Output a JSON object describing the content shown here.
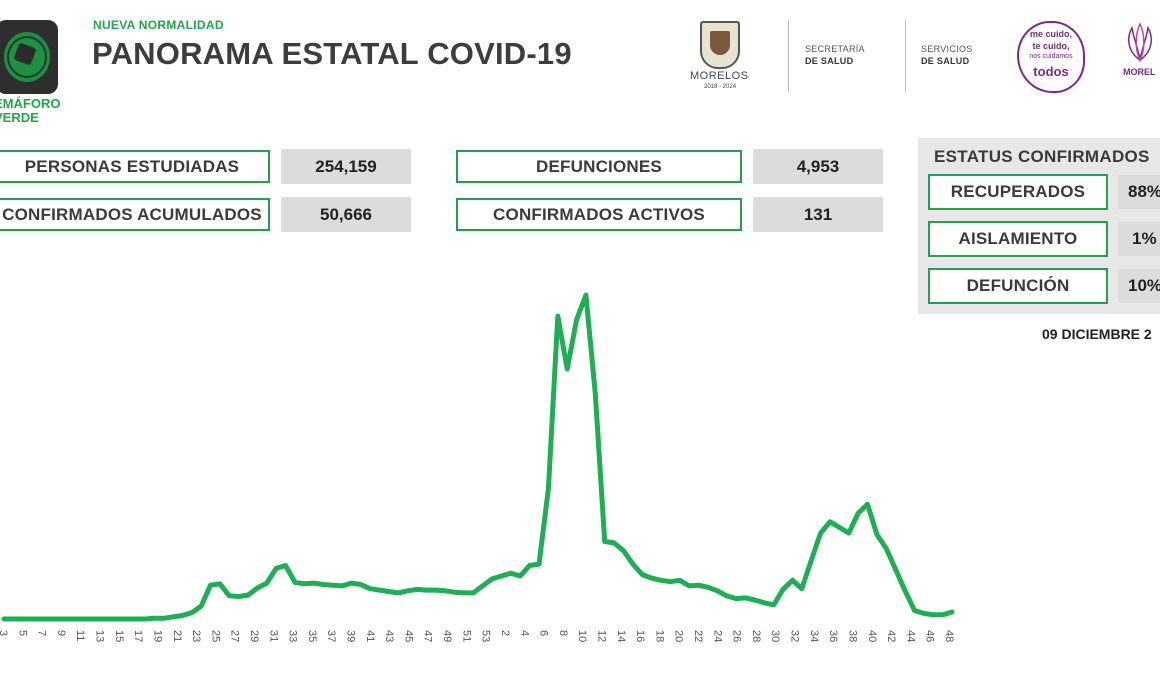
{
  "header": {
    "subtitle": "NUEVA NORMALIDAD",
    "title": "PANORAMA ESTATAL COVID-19",
    "semaforo_line1": "EMÁFORO",
    "semaforo_line2": "VERDE"
  },
  "logos": {
    "morelos_gov": "MORELOS",
    "morelos_gov_years": "2018 - 2024",
    "secretaria_top": "SECRETARÍA",
    "secretaria_bottom": "DE SALUD",
    "servicios_top": "SERVICIOS",
    "servicios_bottom": "DE SALUD",
    "campaign_line1": "me cuido,",
    "campaign_line2": "te cuido,",
    "campaign_line3": "nos cuidamos",
    "campaign_line4": "todos",
    "morelos_state": "MOREL",
    "accent_green": "#23a04f",
    "accent_purple": "#7a2b84"
  },
  "stats": {
    "personas_label": "PERSONAS ESTUDIADAS",
    "personas_value": "254,159",
    "confirmados_label": "CONFIRMADOS ACUMULADOS",
    "confirmados_value": "50,666",
    "defunciones_label": "DEFUNCIONES",
    "defunciones_value": "4,953",
    "activos_label": "CONFIRMADOS ACTIVOS",
    "activos_value": "131"
  },
  "estatus": {
    "title": "ESTATUS CONFIRMADOS",
    "recuperados_label": "RECUPERADOS",
    "recuperados_value": "88%",
    "aislamiento_label": "AISLAMIENTO",
    "aislamiento_value": "1%",
    "defuncion_label": "DEFUNCIÓN",
    "defuncion_value": "10%"
  },
  "date": "09 DICIEMBRE 2",
  "chart_data": {
    "type": "line",
    "title": "",
    "xlabel": "",
    "ylabel": "",
    "color": "#1fae55",
    "grid": false,
    "x_labels_shown": [
      "3",
      "5",
      "7",
      "9",
      "11",
      "13",
      "15",
      "17",
      "19",
      "21",
      "23",
      "25",
      "27",
      "29",
      "31",
      "33",
      "35",
      "37",
      "39",
      "41",
      "43",
      "45",
      "47",
      "49",
      "51",
      "53",
      "2",
      "4",
      "6",
      "8",
      "10",
      "12",
      "14",
      "16",
      "18",
      "20",
      "22",
      "24",
      "26",
      "28",
      "30",
      "32",
      "34",
      "36",
      "38",
      "40",
      "42",
      "44",
      "46",
      "48"
    ],
    "values": [
      0,
      0,
      0,
      0,
      0,
      0,
      0,
      0,
      0,
      0,
      0,
      0,
      0,
      0,
      0,
      0,
      1,
      1,
      3,
      5,
      9,
      18,
      48,
      50,
      33,
      32,
      34,
      44,
      51,
      72,
      76,
      52,
      50,
      51,
      49,
      48,
      47,
      51,
      49,
      43,
      41,
      39,
      37,
      40,
      42,
      41,
      41,
      40,
      38,
      37,
      37,
      47,
      57,
      61,
      65,
      61,
      76,
      78,
      185,
      430,
      355,
      425,
      460,
      320,
      110,
      108,
      97,
      78,
      63,
      58,
      55,
      53,
      55,
      47,
      48,
      45,
      40,
      33,
      29,
      30,
      27,
      23,
      20,
      42,
      55,
      43,
      83,
      122,
      138,
      130,
      122,
      150,
      163,
      120,
      100,
      70,
      40,
      12,
      8,
      6,
      6,
      10
    ]
  }
}
